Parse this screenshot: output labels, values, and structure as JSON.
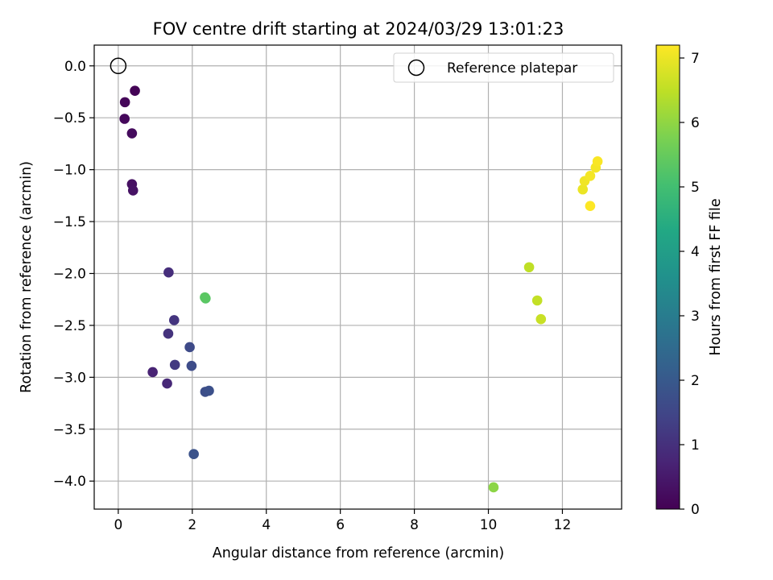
{
  "chart_data": {
    "type": "scatter",
    "title": "FOV centre drift starting at 2024/03/29 13:01:23",
    "xlabel": "Angular distance from reference (arcmin)",
    "ylabel": "Rotation from reference (arcmin)",
    "xlim": [
      -0.65,
      13.6
    ],
    "ylim": [
      -4.27,
      0.2
    ],
    "xticks": [
      0,
      2,
      4,
      6,
      8,
      10,
      12
    ],
    "yticks": [
      0.0,
      -0.5,
      -1.0,
      -1.5,
      -2.0,
      -2.5,
      -3.0,
      -3.5,
      -4.0
    ],
    "grid": true,
    "legend": {
      "label": "Reference platepar",
      "placement": "top-right"
    },
    "reference_point": {
      "x": 0.0,
      "y": 0.0
    },
    "colorbar": {
      "label": "Hours from first FF file",
      "colormap": "viridis",
      "range": [
        0,
        7.2
      ],
      "ticks": [
        0,
        1,
        2,
        3,
        4,
        5,
        6,
        7
      ]
    },
    "points": [
      {
        "x": 0.45,
        "y": -0.24,
        "hours": 0.05
      },
      {
        "x": 0.18,
        "y": -0.35,
        "hours": 0.1
      },
      {
        "x": 0.17,
        "y": -0.51,
        "hours": 0.15
      },
      {
        "x": 0.37,
        "y": -0.65,
        "hours": 0.2
      },
      {
        "x": 0.37,
        "y": -1.14,
        "hours": 0.3
      },
      {
        "x": 0.4,
        "y": -1.2,
        "hours": 0.35
      },
      {
        "x": 0.93,
        "y": -2.95,
        "hours": 0.7
      },
      {
        "x": 1.32,
        "y": -3.06,
        "hours": 0.8
      },
      {
        "x": 1.36,
        "y": -1.99,
        "hours": 0.95
      },
      {
        "x": 1.35,
        "y": -2.58,
        "hours": 1.05
      },
      {
        "x": 1.51,
        "y": -2.45,
        "hours": 1.1
      },
      {
        "x": 1.53,
        "y": -2.88,
        "hours": 1.2
      },
      {
        "x": 1.93,
        "y": -2.71,
        "hours": 1.6
      },
      {
        "x": 1.98,
        "y": -2.89,
        "hours": 1.65
      },
      {
        "x": 2.35,
        "y": -3.14,
        "hours": 1.7
      },
      {
        "x": 2.45,
        "y": -3.13,
        "hours": 1.75
      },
      {
        "x": 2.04,
        "y": -3.74,
        "hours": 1.8
      },
      {
        "x": 2.36,
        "y": -2.24,
        "hours": 5.3
      },
      {
        "x": 2.34,
        "y": -2.23,
        "hours": 5.35
      },
      {
        "x": 10.14,
        "y": -4.06,
        "hours": 5.95
      },
      {
        "x": 11.1,
        "y": -1.94,
        "hours": 6.5
      },
      {
        "x": 11.32,
        "y": -2.26,
        "hours": 6.55
      },
      {
        "x": 11.42,
        "y": -2.44,
        "hours": 6.6
      },
      {
        "x": 12.55,
        "y": -1.19,
        "hours": 7.0
      },
      {
        "x": 12.6,
        "y": -1.11,
        "hours": 7.05
      },
      {
        "x": 12.75,
        "y": -1.06,
        "hours": 7.1
      },
      {
        "x": 12.9,
        "y": -0.98,
        "hours": 7.1
      },
      {
        "x": 12.95,
        "y": -0.92,
        "hours": 7.15
      },
      {
        "x": 12.75,
        "y": -1.35,
        "hours": 7.2
      }
    ]
  }
}
